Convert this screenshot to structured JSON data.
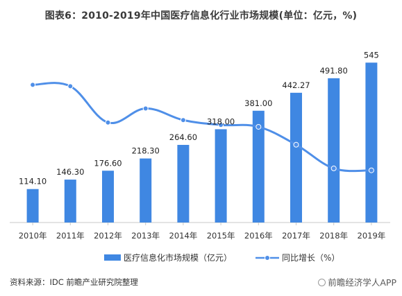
{
  "chart_data": {
    "type": "bar+line",
    "title": "图表6：2010-2019年中国医疗信息化行业市场规模(单位：亿元，%)",
    "categories": [
      "2010年",
      "2011年",
      "2012年",
      "2013年",
      "2014年",
      "2015年",
      "2016年",
      "2017年",
      "2018年",
      "2019年"
    ],
    "bar_series": {
      "name": "医疗信息化市场规模（亿元）",
      "values": [
        114.1,
        146.3,
        176.6,
        218.3,
        264.6,
        318.0,
        381.0,
        442.27,
        491.8,
        545
      ],
      "labels": [
        "114.10",
        "146.30",
        "176.60",
        "218.30",
        "264.60",
        "318.00",
        "381.00",
        "442.27",
        "491.80",
        "545"
      ],
      "color": "#3f87e2"
    },
    "line_series": {
      "name": "同比增长（%）",
      "values": [
        28.5,
        28.2,
        20.7,
        23.6,
        21.2,
        20.2,
        19.8,
        16.1,
        11.2,
        10.8
      ],
      "color": "#4f8fe8"
    },
    "ylim_bar": [
      0,
      560
    ],
    "ylim_line": [
      0,
      34
    ],
    "legend_position": "bottom",
    "grid": false
  },
  "source": "资料来源：IDC 前瞻产业研究院整理",
  "brand": "前瞻经济学人APP"
}
